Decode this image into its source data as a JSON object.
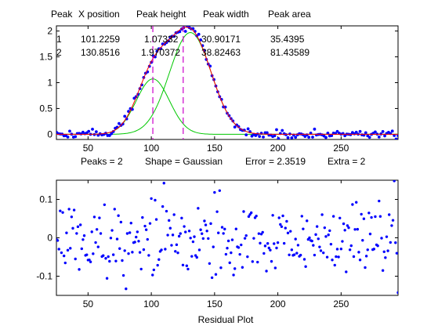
{
  "figure": {
    "table_header": [
      "Peak",
      "X position",
      "Peak height",
      "Peak width",
      "Peak area"
    ],
    "table_rows": [
      [
        "1",
        "101.2259",
        "1.07332",
        "30.90171",
        "35.4395"
      ],
      [
        "2",
        "130.8516",
        "1.970372",
        "38.82463",
        "81.43589"
      ]
    ],
    "status": {
      "peaks": "Peaks = 2",
      "shape": "Shape = Gaussian",
      "error": "Error = 2.3519",
      "extra": "Extra = 2"
    },
    "residual_xlabel": "Residual Plot"
  },
  "chart_data": [
    {
      "type": "scatter",
      "title": "",
      "xlabel": "",
      "ylabel": "",
      "xlim": [
        25,
        295
      ],
      "ylim": [
        -0.1,
        2.1
      ],
      "xticks": [
        50,
        100,
        150,
        200,
        250
      ],
      "yticks": [
        0,
        0.5,
        1,
        1.5,
        2
      ],
      "ytick_labels": [
        "0",
        "0.5",
        "1",
        "1.5",
        "2"
      ],
      "grid": false,
      "colors": {
        "data": "#0000ff",
        "fit": "#ff0000",
        "components": "#00c800",
        "markers": "#cc00cc"
      },
      "peaks": [
        {
          "position": 101.2259,
          "height": 1.07332,
          "width": 30.90171
        },
        {
          "position": 130.8516,
          "height": 1.970372,
          "width": 38.82463
        }
      ],
      "marker_lines": [
        101.2,
        125.2
      ],
      "data_x_range": [
        25,
        295
      ],
      "data_x_step": 1.5,
      "noise_amplitude": 0.06
    },
    {
      "type": "scatter",
      "title": "",
      "xlabel": "Residual Plot",
      "ylabel": "",
      "xlim": [
        25,
        295
      ],
      "ylim": [
        -0.15,
        0.15
      ],
      "xticks": [
        50,
        100,
        150,
        200,
        250
      ],
      "yticks": [
        -0.1,
        0,
        0.1
      ],
      "ytick_labels": [
        "-0.1",
        "0",
        "0.1"
      ],
      "grid": false,
      "colors": {
        "points": "#0000ff"
      },
      "residual_x_range": [
        25,
        295
      ],
      "residual_x_step": 1,
      "residual_spread": 0.05
    }
  ]
}
